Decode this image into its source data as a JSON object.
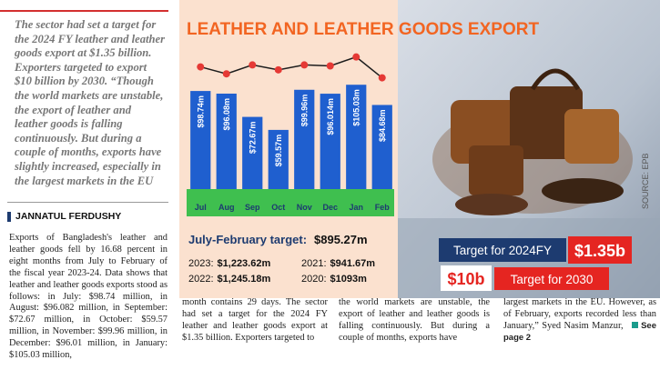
{
  "article": {
    "pull_quote": "The sector had set a target for the 2024 FY leather and leather goods export at $1.35 billion. Exporters targeted to export $10 billion by 2030. “Though the world markets are unstable, the export of leather and leather goods is falling continuously. But during a couple of months, exports have slightly increased, especially in the largest markets in the EU",
    "byline": "JANNATUL FERDUSHY",
    "columns": [
      "Exports of Bangladesh's leather and leather goods fell by 16.68 percent in eight months from July to February of the fiscal year 2023-24. Data shows that leather and leather goods exports stood as follows: in July: $98.74 million, in August: $96.082 million, in September: $72.67 million, in October: $59.57 million, in November: $99.96 million, in December: $96.01 million, in January: $105.03 million,",
      "and in February: $84.68 million as the month contains 29 days. The sector had set a target for the 2024 FY leather and leather goods export at $1.35 billion. Exporters targeted to",
      "export $10 billion by 2030. “Though the world markets are unstable, the export of leather and leather goods is falling continuously. But during a couple of months, exports have",
      "slightly increased, especially in the largest markets in the EU. However, as of February, exports recorded less than January,” Syed Nasim Manzur,"
    ],
    "see_page": "See page 2"
  },
  "chart_data": {
    "type": "bar",
    "title": "LEATHER AND LEATHER GOODS EXPORT",
    "categories": [
      "Jul",
      "Aug",
      "Sep",
      "Oct",
      "Nov",
      "Dec",
      "Jan",
      "Feb"
    ],
    "series": [
      {
        "color": "#1f5fcf",
        "values": [
          98.74,
          96.08,
          72.67,
          59.57,
          99.96,
          96.014,
          105.03,
          84.68
        ],
        "value_labels": [
          "$98.74m",
          "$96.08m",
          "$72.67m",
          "$59.57m",
          "$99.96m",
          "$96.014m",
          "$105.03m",
          "$84.68m"
        ]
      },
      {
        "type": "line",
        "color": "#e53935",
        "values": [
          123,
          116,
          125,
          120,
          125,
          124,
          133,
          112
        ]
      }
    ],
    "ylim": [
      0,
      140
    ],
    "summary": {
      "label": "July-February target:",
      "value": "$895.27m",
      "years": [
        {
          "label": "2023:",
          "value": "$1,223.62m"
        },
        {
          "label": "2021:",
          "value": "$941.67m"
        },
        {
          "label": "2022:",
          "value": "$1,245.18m"
        },
        {
          "label": "2020:",
          "value": "$1093m"
        }
      ]
    },
    "targets": {
      "fy_label": "Target for 2024FY",
      "fy_value": "$1.35b",
      "y2030_value": "$10b",
      "y2030_label": "Target for 2030"
    },
    "source": "SOURCE: EPB"
  }
}
